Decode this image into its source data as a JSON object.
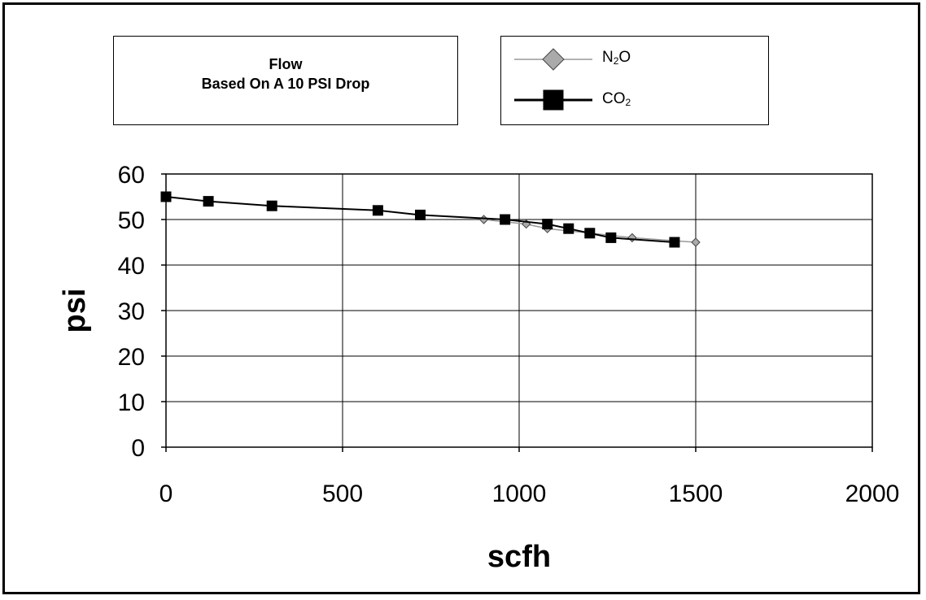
{
  "chart_data": {
    "type": "line",
    "title_line1": "Flow",
    "title_line2": "Based On A 10 PSI Drop",
    "xlabel": "scfh",
    "ylabel": "psi",
    "xlim": [
      0,
      2000
    ],
    "ylim": [
      0,
      60
    ],
    "x_ticks": [
      "0",
      "500",
      "1000",
      "1500",
      "2000"
    ],
    "y_ticks": [
      "0",
      "10",
      "20",
      "30",
      "40",
      "50",
      "60"
    ],
    "grid": true,
    "legend_position": "top-right",
    "series": [
      {
        "name_main": "N",
        "name_sub": "2",
        "name_tail": "O",
        "marker": "diamond",
        "color": "#999999",
        "marker_fill": "#aaaaaa",
        "points": [
          [
            900,
            50
          ],
          [
            1020,
            49
          ],
          [
            1080,
            48
          ],
          [
            1200,
            47
          ],
          [
            1320,
            46
          ],
          [
            1500,
            45
          ]
        ]
      },
      {
        "name_main": "CO",
        "name_sub": "2",
        "name_tail": "",
        "marker": "square",
        "color": "#000000",
        "marker_fill": "#000000",
        "points": [
          [
            0,
            55
          ],
          [
            120,
            54
          ],
          [
            300,
            53
          ],
          [
            600,
            52
          ],
          [
            720,
            51
          ],
          [
            960,
            50
          ],
          [
            1080,
            49
          ],
          [
            1140,
            48
          ],
          [
            1200,
            47
          ],
          [
            1260,
            46
          ],
          [
            1440,
            45
          ]
        ]
      }
    ]
  }
}
